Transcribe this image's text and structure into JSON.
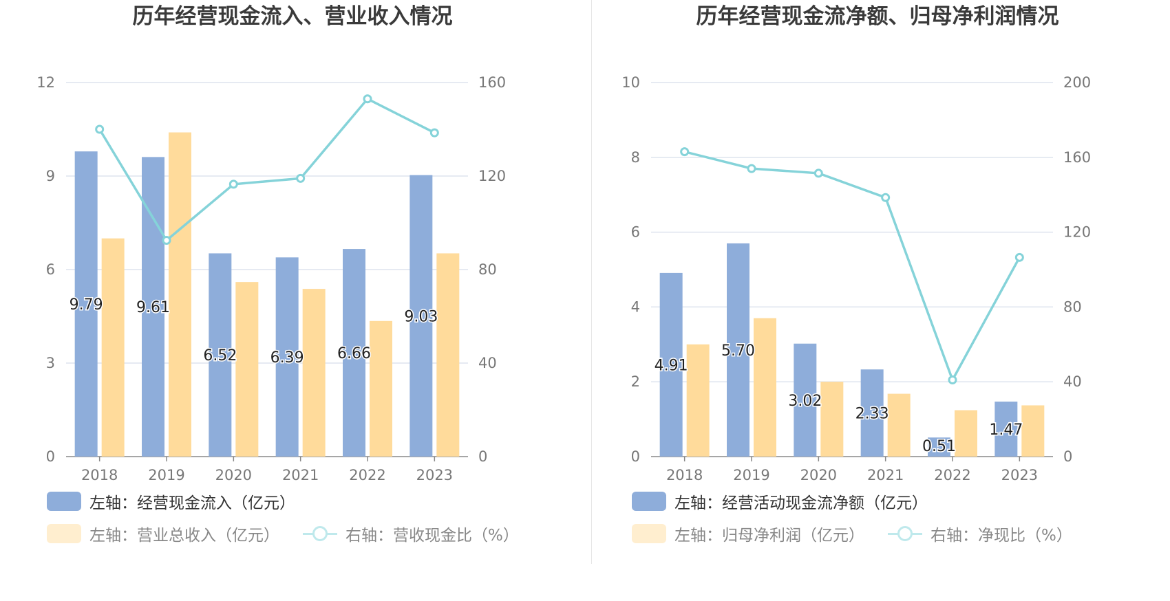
{
  "colors": {
    "bar1": "#8eadda",
    "bar2": "#ffdb9b",
    "line": "#85d3d9",
    "line_light": "#bfe9ec",
    "bar1_light": "#c6d6ee",
    "bar2_light": "#ffeecf",
    "grid": "#dde3ee",
    "axis": "#888888"
  },
  "chart_data": [
    {
      "type": "bar",
      "title": "历年经营现金流入、营业收入情况",
      "categories": [
        "2018",
        "2019",
        "2020",
        "2021",
        "2022",
        "2023"
      ],
      "left_axis": {
        "min": 0,
        "max": 12,
        "ticks": [
          "0",
          "3",
          "6",
          "9",
          "12"
        ]
      },
      "right_axis": {
        "min": 0,
        "max": 160,
        "ticks": [
          "0",
          "40",
          "80",
          "120",
          "160"
        ]
      },
      "series": [
        {
          "name": "左轴：经营现金流入（亿元）",
          "axis": "left",
          "kind": "bar",
          "values": [
            9.79,
            9.61,
            6.52,
            6.39,
            6.66,
            9.03
          ],
          "labels": [
            "9.79",
            "9.61",
            "6.52",
            "6.39",
            "6.66",
            "9.03"
          ]
        },
        {
          "name": "左轴：营业总收入（亿元）",
          "axis": "left",
          "kind": "bar",
          "values": [
            7.0,
            10.4,
            5.6,
            5.38,
            4.35,
            6.52
          ]
        },
        {
          "name": "右轴：营收现金比（%）",
          "axis": "right",
          "kind": "line",
          "values": [
            140,
            92.5,
            116.5,
            119,
            153,
            138.5
          ]
        }
      ],
      "legend": [
        {
          "name": "左轴：经营现金流入（亿元）",
          "kind": "bar1",
          "dim": false
        },
        {
          "name": "左轴：营业总收入（亿元）",
          "kind": "bar2",
          "dim": true
        },
        {
          "name": "右轴：营收现金比（%）",
          "kind": "line",
          "dim": true
        }
      ]
    },
    {
      "type": "bar",
      "title": "历年经营现金流净额、归母净利润情况",
      "categories": [
        "2018",
        "2019",
        "2020",
        "2021",
        "2022",
        "2023"
      ],
      "left_axis": {
        "min": 0,
        "max": 10,
        "ticks": [
          "0",
          "2",
          "4",
          "6",
          "8",
          "10"
        ]
      },
      "right_axis": {
        "min": 0,
        "max": 200,
        "ticks": [
          "0",
          "40",
          "80",
          "120",
          "160",
          "200"
        ]
      },
      "series": [
        {
          "name": "左轴：经营活动现金流净额（亿元）",
          "axis": "left",
          "kind": "bar",
          "values": [
            4.91,
            5.7,
            3.02,
            2.33,
            0.51,
            1.47
          ],
          "labels": [
            "4.91",
            "5.70",
            "3.02",
            "2.33",
            "0.51",
            "1.47"
          ]
        },
        {
          "name": "左轴：归母净利润（亿元）",
          "axis": "left",
          "kind": "bar",
          "values": [
            3.0,
            3.7,
            2.0,
            1.68,
            1.24,
            1.37
          ]
        },
        {
          "name": "右轴：净现比（%）",
          "axis": "right",
          "kind": "line",
          "values": [
            163,
            154,
            151.5,
            138.5,
            41,
            106.5
          ]
        }
      ],
      "legend": [
        {
          "name": "左轴：经营活动现金流净额（亿元）",
          "kind": "bar1",
          "dim": false
        },
        {
          "name": "左轴：归母净利润（亿元）",
          "kind": "bar2",
          "dim": true
        },
        {
          "name": "右轴：净现比（%）",
          "kind": "line",
          "dim": true
        }
      ]
    }
  ]
}
